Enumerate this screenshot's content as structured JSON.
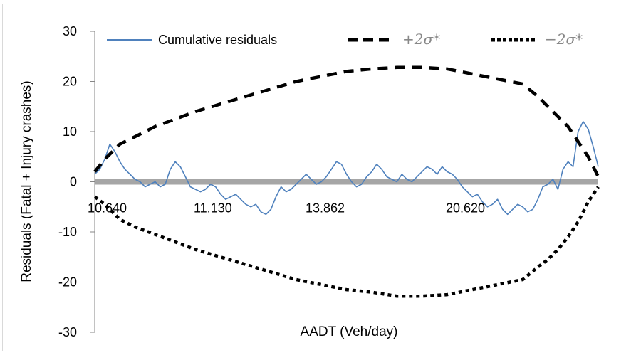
{
  "chart_data": {
    "type": "line",
    "xlabel": "AADT (Veh/day)",
    "ylabel": "Residuals (Fatal + Injury crashes)",
    "ylim": [
      -30,
      30
    ],
    "yticks": [
      30,
      20,
      10,
      0,
      -10,
      -20,
      -30
    ],
    "xtick_labels": [
      "10.640",
      "11.130",
      "13.862",
      "20.620"
    ],
    "legend_position": "top",
    "series": [
      {
        "name": "Cumulative residuals",
        "color": "#4f81bd",
        "style": "solid",
        "x": [
          0,
          1,
          2,
          3,
          4,
          5,
          6,
          7,
          8,
          9,
          10,
          11,
          12,
          13,
          14,
          15,
          16,
          17,
          18,
          19,
          20,
          21,
          22,
          23,
          24,
          25,
          26,
          27,
          28,
          29,
          30,
          31,
          32,
          33,
          34,
          35,
          36,
          37,
          38,
          39,
          40,
          41,
          42,
          43,
          44,
          45,
          46,
          47,
          48,
          49,
          50,
          51,
          52,
          53,
          54,
          55,
          56,
          57,
          58,
          59,
          60,
          61,
          62,
          63,
          64,
          65,
          66,
          67,
          68,
          69,
          70,
          71,
          72,
          73,
          74,
          75,
          76,
          77,
          78,
          79,
          80,
          81,
          82,
          83,
          84,
          85,
          86,
          87,
          88,
          89,
          90,
          91,
          92,
          93,
          94,
          95,
          96,
          97,
          98,
          99,
          100
        ],
        "values": [
          1.5,
          2.5,
          4.5,
          7.5,
          6.0,
          4.0,
          2.5,
          1.5,
          0.5,
          0.0,
          -1.0,
          -0.5,
          0.0,
          -1.0,
          -0.5,
          2.5,
          4.0,
          3.0,
          1.0,
          -1.0,
          -1.5,
          -2.0,
          -1.5,
          -0.5,
          -1.0,
          -2.5,
          -3.5,
          -3.0,
          -2.5,
          -3.5,
          -4.5,
          -5.0,
          -4.5,
          -6.0,
          -6.5,
          -5.5,
          -3.0,
          -1.0,
          -2.0,
          -1.5,
          -0.5,
          0.5,
          1.5,
          0.5,
          -0.5,
          0.0,
          1.0,
          2.5,
          4.0,
          3.5,
          1.5,
          0.0,
          -1.0,
          -0.5,
          1.0,
          2.0,
          3.5,
          2.5,
          1.0,
          0.5,
          0.0,
          1.5,
          0.5,
          0.0,
          1.0,
          2.0,
          3.0,
          2.5,
          1.5,
          3.0,
          2.0,
          1.5,
          0.5,
          -1.0,
          -2.0,
          -3.0,
          -2.5,
          -4.0,
          -5.0,
          -4.5,
          -3.5,
          -5.5,
          -6.5,
          -5.5,
          -4.5,
          -5.0,
          -6.0,
          -5.5,
          -3.5,
          -1.0,
          -0.5,
          0.5,
          -1.5,
          2.5,
          4.0,
          3.0,
          10.0,
          12.0,
          10.5,
          7.0,
          3.0
        ]
      },
      {
        "name": "+2σ*",
        "color": "#000000",
        "style": "dashed",
        "x": [
          0,
          2,
          5,
          8,
          12,
          16,
          20,
          25,
          30,
          35,
          40,
          45,
          50,
          55,
          60,
          65,
          70,
          75,
          80,
          85,
          88,
          90,
          92,
          94,
          96,
          98,
          100
        ],
        "values": [
          2.0,
          4.5,
          7.5,
          9.0,
          11.0,
          12.5,
          14.0,
          15.5,
          17.0,
          18.5,
          20.0,
          21.0,
          22.0,
          22.5,
          22.8,
          22.8,
          22.5,
          21.5,
          20.5,
          19.5,
          17.0,
          15.0,
          13.0,
          11.0,
          8.0,
          5.0,
          1.0
        ]
      },
      {
        "name": "−2σ*",
        "color": "#000000",
        "style": "dotted",
        "x": [
          0,
          2,
          5,
          8,
          12,
          16,
          20,
          25,
          30,
          35,
          40,
          45,
          50,
          55,
          60,
          65,
          70,
          75,
          80,
          85,
          88,
          90,
          92,
          94,
          96,
          98,
          100
        ],
        "values": [
          -3.0,
          -4.5,
          -7.5,
          -9.0,
          -10.5,
          -12.0,
          -13.5,
          -15.0,
          -16.5,
          -18.0,
          -19.5,
          -20.5,
          -21.5,
          -22.0,
          -22.8,
          -22.8,
          -22.5,
          -21.5,
          -20.5,
          -19.5,
          -17.0,
          -15.5,
          -13.5,
          -11.0,
          -8.0,
          -4.0,
          -1.0
        ]
      }
    ]
  },
  "legend": {
    "residual_label": "Cumulative residuals",
    "plus_label": "+2σ*",
    "minus_label": "−2σ*"
  }
}
